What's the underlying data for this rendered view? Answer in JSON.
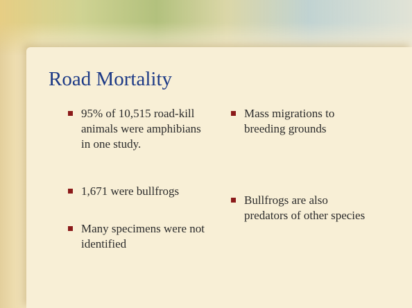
{
  "slide": {
    "title": "Road Mortality",
    "left_bullets": [
      "95% of 10,515 road-kill animals were amphibians in one study.",
      "1,671 were bullfrogs",
      "Many specimens were not identified"
    ],
    "right_bullets": [
      "Mass migrations to breeding grounds",
      "Bullfrogs are also predators of other species"
    ]
  }
}
